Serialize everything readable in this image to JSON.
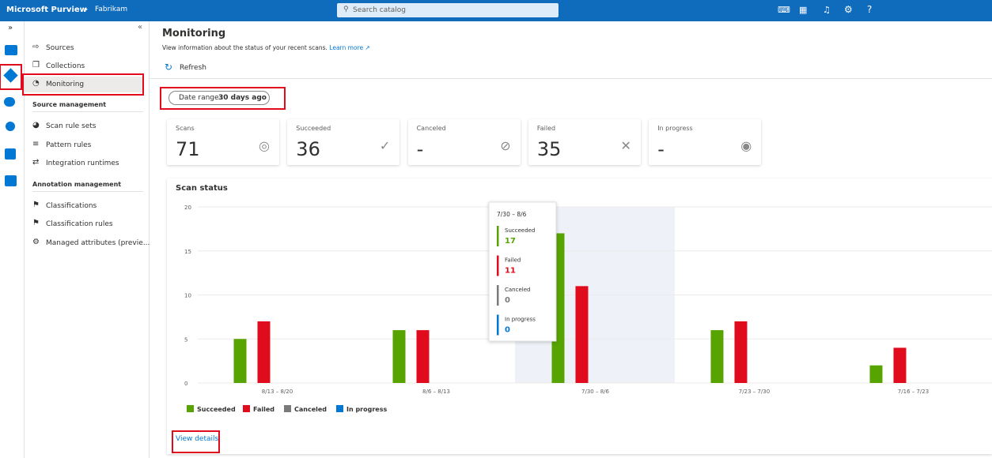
{
  "header": {
    "product": "Microsoft Purview",
    "breadcrumb": "Fabrikam",
    "search_placeholder": "Search catalog"
  },
  "sidebar": {
    "items": [
      "Sources",
      "Collections",
      "Monitoring"
    ],
    "sections": [
      {
        "title": "Source management",
        "items": [
          "Scan rule sets",
          "Pattern rules",
          "Integration runtimes"
        ]
      },
      {
        "title": "Annotation management",
        "items": [
          "Classifications",
          "Classification rules",
          "Managed attributes (previe..."
        ]
      }
    ]
  },
  "page": {
    "title": "Monitoring",
    "description": "View information about the status of your recent scans.",
    "learn_more": "Learn more",
    "refresh": "Refresh",
    "date_range": {
      "label": "Date range :",
      "value": "30 days ago"
    }
  },
  "cards": [
    {
      "label": "Scans",
      "value": "71"
    },
    {
      "label": "Succeeded",
      "value": "36"
    },
    {
      "label": "Canceled",
      "value": "-"
    },
    {
      "label": "Failed",
      "value": "35"
    },
    {
      "label": "In progress",
      "value": "-"
    }
  ],
  "chart_data": {
    "type": "bar",
    "title": "Scan status",
    "categories": [
      "8/13 – 8/20",
      "8/6 – 8/13",
      "7/30 – 8/6",
      "7/23 – 7/30",
      "7/16 – 7/23"
    ],
    "series": [
      {
        "name": "Succeeded",
        "color": "#57a300",
        "values": [
          5,
          6,
          17,
          6,
          2
        ]
      },
      {
        "name": "Failed",
        "color": "#e00b1c",
        "values": [
          7,
          6,
          11,
          7,
          4
        ]
      },
      {
        "name": "Canceled",
        "color": "#7a7a7a",
        "values": [
          0,
          0,
          0,
          0,
          0
        ]
      },
      {
        "name": "In progress",
        "color": "#0078d4",
        "values": [
          0,
          0,
          0,
          0,
          0
        ]
      }
    ],
    "ylim": [
      0,
      20
    ],
    "yticks": [
      0,
      5,
      10,
      15,
      20
    ],
    "grid": true,
    "legend": "bottom"
  },
  "view_details": "View details"
}
